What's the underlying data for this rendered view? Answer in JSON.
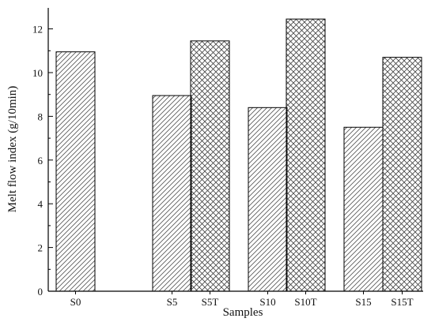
{
  "chart_data": {
    "type": "bar",
    "xlabel": "Samples",
    "ylabel": "Melt flow index (g/10min)",
    "ylim": [
      0,
      13
    ],
    "yticks": [
      0,
      2,
      4,
      6,
      8,
      10,
      12
    ],
    "categories": [
      "S0",
      "S5",
      "S5T",
      "S10",
      "S10T",
      "S15",
      "S15T"
    ],
    "values": [
      10.95,
      8.95,
      11.45,
      8.4,
      12.45,
      7.5,
      10.7
    ],
    "patterns": [
      "diagonal-hatch",
      "diagonal-hatch",
      "cross-hatch",
      "diagonal-hatch",
      "cross-hatch",
      "diagonal-hatch",
      "cross-hatch"
    ],
    "grid": false,
    "bar_stroke": "#000000"
  }
}
